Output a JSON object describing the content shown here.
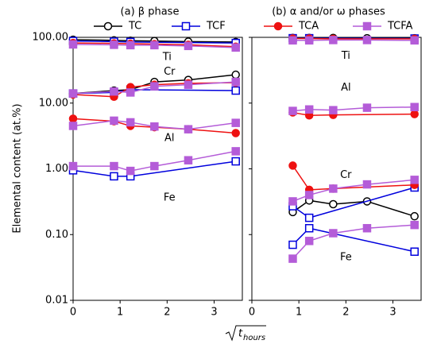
{
  "figure": {
    "ylabel": "Elemental content (at.%)",
    "xlabel_base": "t",
    "xlabel_subscript": "hours"
  },
  "chart_data": [
    {
      "type": "line",
      "title": "(a) β phase",
      "log_y": true,
      "xlim": [
        0,
        3.6
      ],
      "xticks": [
        0,
        1,
        2,
        3
      ],
      "ylim": [
        0.01,
        100
      ],
      "yticks": [
        {
          "value": 0.01,
          "label": "0.01"
        },
        {
          "value": 0.1,
          "label": "0.10"
        },
        {
          "value": 1,
          "label": "1.00"
        },
        {
          "value": 10,
          "label": "10.00"
        },
        {
          "value": 100,
          "label": "100.00"
        }
      ],
      "annotations": [
        "Ti",
        "Cr",
        "Al",
        "Fe"
      ],
      "series": [
        {
          "name": "TC",
          "color": "#000000",
          "marker": "circle",
          "filled": false,
          "legend": true,
          "lines": [
            {
              "x": [
                0,
                0.87,
                1.22,
                1.73,
                2.45,
                3.46
              ],
              "values": [
                92,
                90,
                89,
                88,
                86,
                85
              ]
            },
            {
              "x": [
                0,
                0.87,
                1.22,
                1.73,
                2.45,
                3.46
              ],
              "values": [
                14,
                15.5,
                16,
                21,
                22.5,
                27
              ]
            }
          ]
        },
        {
          "name": "TCF",
          "color": "#0000dd",
          "marker": "square",
          "filled": false,
          "legend": true,
          "lines": [
            {
              "x": [
                0,
                0.87,
                1.22,
                3.46
              ],
              "values": [
                88,
                86,
                85,
                82
              ]
            },
            {
              "x": [
                0,
                0.87,
                1.22,
                3.46
              ],
              "values": [
                14,
                14.5,
                16,
                15.5
              ]
            },
            {
              "x": [
                0,
                0.87,
                1.22,
                3.46
              ],
              "values": [
                0.95,
                0.77,
                0.77,
                1.3
              ]
            }
          ]
        },
        {
          "name": "TCA",
          "color": "#ee1111",
          "marker": "circle",
          "filled": true,
          "legend": false,
          "lines": [
            {
              "x": [
                0,
                0.87,
                1.22,
                1.73,
                2.45,
                3.46
              ],
              "values": [
                82,
                81,
                80,
                79,
                77,
                72
              ]
            },
            {
              "x": [
                0,
                0.87,
                1.22,
                1.73,
                2.45,
                3.46
              ],
              "values": [
                13.5,
                12.5,
                17.5,
                19,
                20,
                20.5
              ]
            },
            {
              "x": [
                0,
                0.87,
                1.22,
                1.73,
                2.45,
                3.46
              ],
              "values": [
                5.8,
                5.3,
                4.5,
                4.3,
                4.0,
                3.5
              ]
            }
          ]
        },
        {
          "name": "TCFA",
          "color": "#b45cd8",
          "marker": "square",
          "filled": true,
          "legend": false,
          "lines": [
            {
              "x": [
                0,
                0.87,
                1.22,
                1.73,
                2.45,
                3.46
              ],
              "values": [
                78,
                77,
                76,
                76,
                74,
                70
              ]
            },
            {
              "x": [
                0,
                0.87,
                1.22,
                1.73,
                2.45,
                3.46
              ],
              "values": [
                14,
                15,
                14.5,
                18,
                19,
                21
              ]
            },
            {
              "x": [
                0,
                0.87,
                1.22,
                1.73,
                2.45,
                3.46
              ],
              "values": [
                4.5,
                5.4,
                5.1,
                4.4,
                4.0,
                5.0
              ]
            },
            {
              "x": [
                0,
                0.87,
                1.22,
                1.73,
                2.45,
                3.46
              ],
              "values": [
                1.1,
                1.1,
                0.93,
                1.1,
                1.35,
                1.85
              ]
            }
          ]
        }
      ]
    },
    {
      "type": "line",
      "title": "(b) α and/or ω phases",
      "log_y": true,
      "xlim": [
        0,
        3.6
      ],
      "xticks": [
        0,
        1,
        2,
        3
      ],
      "ylim": [
        0.01,
        100
      ],
      "yticks": [
        0.01,
        0.1,
        1,
        10,
        100
      ],
      "annotations": [
        "Ti",
        "Al",
        "Cr",
        "Fe"
      ],
      "series": [
        {
          "name": "TC",
          "color": "#000000",
          "marker": "circle",
          "filled": false,
          "legend": false,
          "lines": [
            {
              "x": [
                0.87,
                1.22,
                1.73,
                2.45,
                3.46
              ],
              "values": [
                98,
                98,
                98,
                97,
                97
              ]
            },
            {
              "x": [
                0.87,
                1.22,
                1.73,
                2.45,
                3.46
              ],
              "values": [
                0.22,
                0.33,
                0.29,
                0.32,
                0.19
              ]
            }
          ]
        },
        {
          "name": "TCF",
          "color": "#0000dd",
          "marker": "square",
          "filled": false,
          "legend": false,
          "lines": [
            {
              "x": [
                0.87,
                1.22,
                3.46
              ],
              "values": [
                97,
                97,
                96
              ]
            },
            {
              "x": [
                0.87,
                1.22,
                3.46
              ],
              "values": [
                0.27,
                0.18,
                0.52
              ]
            },
            {
              "x": [
                0.87,
                1.22,
                3.46
              ],
              "values": [
                0.07,
                0.125,
                0.055
              ]
            }
          ]
        },
        {
          "name": "TCA",
          "color": "#ee1111",
          "marker": "circle",
          "filled": true,
          "legend": true,
          "lines": [
            {
              "x": [
                0.87,
                1.22,
                1.73,
                3.46
              ],
              "values": [
                96,
                96,
                95,
                95
              ]
            },
            {
              "x": [
                0.87,
                1.22,
                1.73,
                3.46
              ],
              "values": [
                7.2,
                6.5,
                6.6,
                6.8
              ]
            },
            {
              "x": [
                0.87,
                1.22,
                1.73,
                3.46
              ],
              "values": [
                1.12,
                0.48,
                0.5,
                0.57
              ]
            }
          ]
        },
        {
          "name": "TCFA",
          "color": "#b45cd8",
          "marker": "square",
          "filled": true,
          "legend": true,
          "lines": [
            {
              "x": [
                0.87,
                1.22,
                1.73,
                2.45,
                3.46
              ],
              "values": [
                90,
                90,
                91,
                91,
                90
              ]
            },
            {
              "x": [
                0.87,
                1.22,
                1.73,
                2.45,
                3.46
              ],
              "values": [
                7.6,
                8.0,
                7.8,
                8.5,
                8.7
              ]
            },
            {
              "x": [
                0.87,
                1.22,
                1.73,
                2.45,
                3.46
              ],
              "values": [
                0.32,
                0.4,
                0.5,
                0.58,
                0.68
              ]
            },
            {
              "x": [
                0.87,
                1.22,
                1.73,
                2.45,
                3.46
              ],
              "values": [
                0.043,
                0.08,
                0.105,
                0.125,
                0.14
              ]
            }
          ]
        }
      ]
    }
  ]
}
